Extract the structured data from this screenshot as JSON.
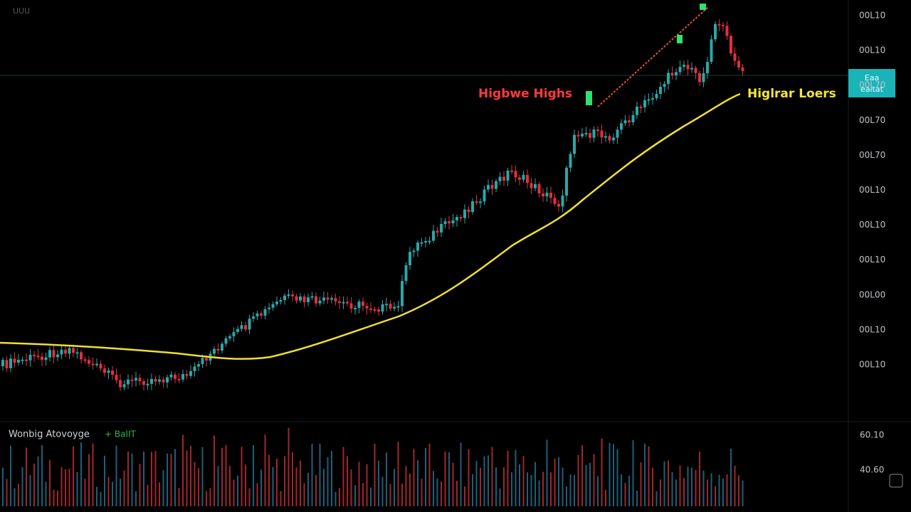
{
  "header": {
    "symbol": "UUU"
  },
  "price_axis": {
    "labels": [
      "00L10",
      "00L10",
      "00L70",
      "00L70",
      "00L70",
      "00L10",
      "00L10",
      "00L10",
      "00L00",
      "00L10",
      "00L10"
    ]
  },
  "price_tag": {
    "line1": "Eaa",
    "line2": "ealtat"
  },
  "annotations": {
    "highs": "Higbwe Highs",
    "lows": "Higlrar Loers"
  },
  "volume_panel": {
    "title": "Wonbig Atovoyge",
    "value": "+ BaIIT",
    "axis_labels": [
      "60.10",
      "40.60"
    ]
  }
}
